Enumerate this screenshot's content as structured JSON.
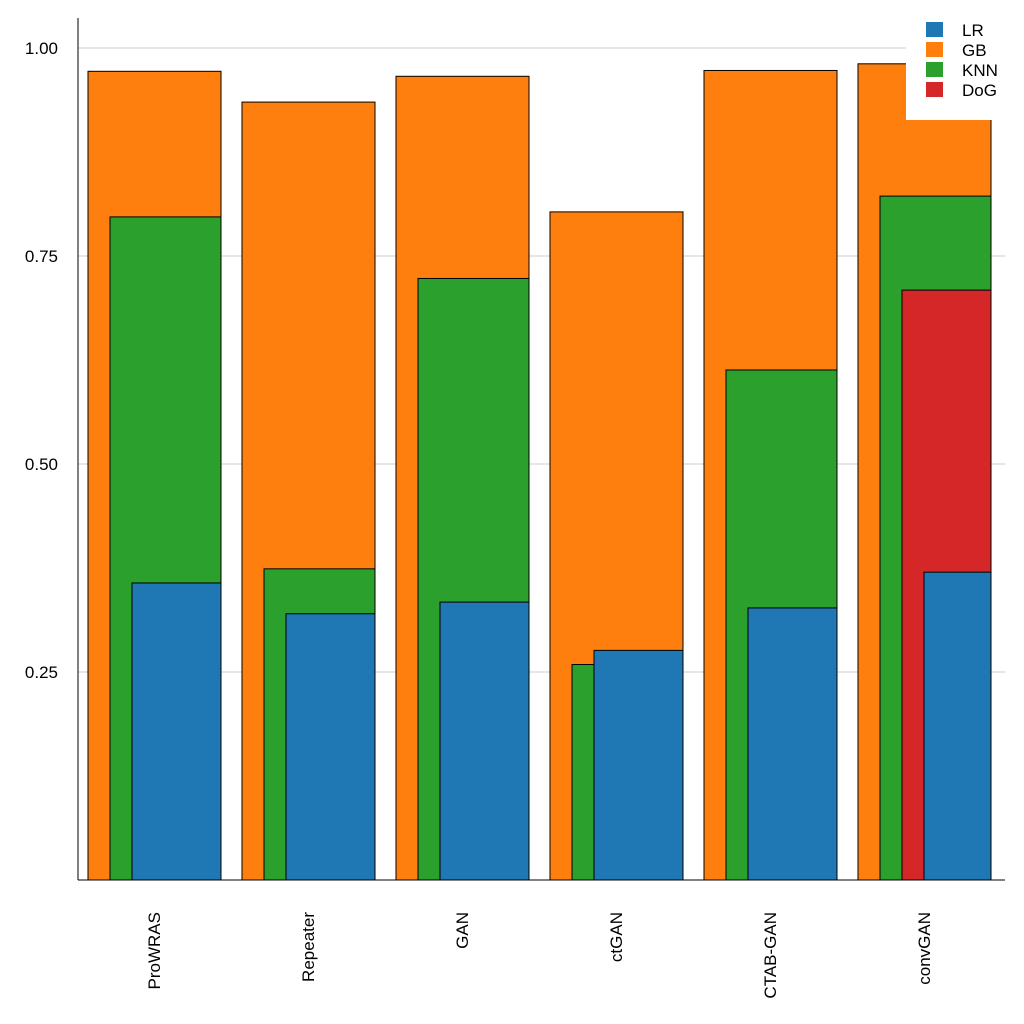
{
  "chart_data": {
    "type": "bar",
    "title": "",
    "xlabel": "",
    "ylabel": "",
    "ylim": [
      0,
      1.05
    ],
    "yticks": [
      0.25,
      0.5,
      0.75,
      1.0
    ],
    "ytick_labels": [
      "0.25",
      "0.50",
      "0.75",
      "1.00"
    ],
    "grid": "horizontal",
    "legend_position": "top-right",
    "categories": [
      "ProWRAS",
      "Repeater",
      "GAN",
      "ctGAN",
      "CTAB-GAN",
      "convGAN"
    ],
    "series": [
      {
        "name": "LR",
        "color": "#1f77b4",
        "values": [
          0.357,
          0.32,
          0.334,
          0.276,
          0.327,
          0.37
        ]
      },
      {
        "name": "GB",
        "color": "#ff7f0e",
        "values": [
          0.972,
          0.935,
          0.966,
          0.803,
          0.973,
          0.981
        ]
      },
      {
        "name": "KNN",
        "color": "#2ca02c",
        "values": [
          0.797,
          0.374,
          0.723,
          0.259,
          0.613,
          0.822
        ]
      },
      {
        "name": "DoG",
        "color": "#d62728",
        "values": [
          null,
          null,
          null,
          null,
          null,
          0.709
        ]
      }
    ]
  }
}
